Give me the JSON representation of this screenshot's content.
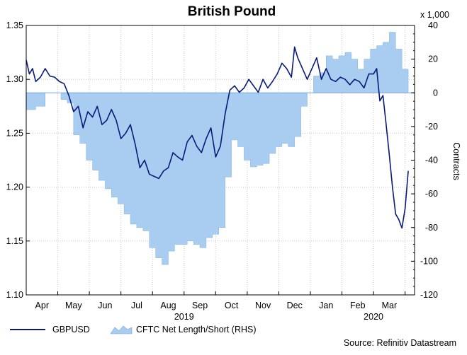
{
  "chart_data": {
    "type": "line",
    "title": "British Pound",
    "source": "Source: Refinitiv Datastream",
    "colors": {
      "price": "#0a1a7a",
      "positions": "#a8cdf0",
      "positions_edge": "#6fa6dc",
      "grid": "#c8c8c8"
    },
    "left_axis": {
      "ylim": [
        1.1,
        1.35
      ],
      "ticks": [
        1.1,
        1.15,
        1.2,
        1.25,
        1.3,
        1.35
      ],
      "tick_labels": [
        "1.10",
        "1.15",
        "1.20",
        "1.25",
        "1.30",
        "1.35"
      ]
    },
    "right_axis": {
      "label": "Contracts",
      "unit_label": "x 1,000",
      "ylim": [
        -120,
        40
      ],
      "ticks": [
        -120,
        -100,
        -80,
        -60,
        -40,
        -20,
        0,
        20,
        40
      ],
      "tick_labels": [
        "-120",
        "-100",
        "-80",
        "-60",
        "-40",
        "-20",
        "0",
        "20",
        "40"
      ]
    },
    "x_axis": {
      "xlim": [
        0,
        12.3
      ],
      "month_ticks": [
        0.5,
        1.5,
        2.5,
        3.5,
        4.5,
        5.5,
        6.5,
        7.5,
        8.5,
        9.5,
        10.5,
        11.5
      ],
      "month_labels": [
        "Apr",
        "May",
        "Jun",
        "Jul",
        "Aug",
        "Sep",
        "Oct",
        "Nov",
        "Dec",
        "Jan",
        "Feb",
        "Mar"
      ],
      "year_labels": [
        {
          "label": "2019",
          "at": 5.0
        },
        {
          "label": "2020",
          "at": 11.0
        }
      ]
    },
    "series": [
      {
        "name": "GBPUSD",
        "axis": "left",
        "kind": "line",
        "x": [
          0.0,
          0.1,
          0.2,
          0.3,
          0.45,
          0.6,
          0.75,
          0.9,
          1.05,
          1.2,
          1.35,
          1.5,
          1.65,
          1.8,
          1.95,
          2.1,
          2.25,
          2.4,
          2.55,
          2.7,
          2.85,
          3.0,
          3.15,
          3.3,
          3.45,
          3.6,
          3.75,
          3.9,
          4.05,
          4.2,
          4.35,
          4.5,
          4.65,
          4.8,
          4.95,
          5.1,
          5.25,
          5.4,
          5.55,
          5.7,
          5.85,
          6.0,
          6.15,
          6.3,
          6.45,
          6.6,
          6.75,
          6.9,
          7.05,
          7.2,
          7.35,
          7.5,
          7.65,
          7.8,
          7.95,
          8.1,
          8.25,
          8.4,
          8.5,
          8.6,
          8.75,
          8.9,
          9.05,
          9.2,
          9.35,
          9.5,
          9.65,
          9.8,
          9.95,
          10.1,
          10.25,
          10.4,
          10.55,
          10.7,
          10.85,
          11.0,
          11.1,
          11.2,
          11.3,
          11.4,
          11.5,
          11.6,
          11.7,
          11.8,
          11.9,
          12.0,
          12.1
        ],
        "values": [
          1.318,
          1.305,
          1.31,
          1.298,
          1.302,
          1.31,
          1.303,
          1.302,
          1.298,
          1.296,
          1.285,
          1.27,
          1.275,
          1.255,
          1.27,
          1.265,
          1.275,
          1.258,
          1.262,
          1.272,
          1.262,
          1.245,
          1.25,
          1.258,
          1.24,
          1.218,
          1.225,
          1.212,
          1.21,
          1.208,
          1.215,
          1.218,
          1.232,
          1.228,
          1.225,
          1.242,
          1.248,
          1.238,
          1.232,
          1.245,
          1.255,
          1.228,
          1.238,
          1.268,
          1.29,
          1.294,
          1.288,
          1.292,
          1.3,
          1.294,
          1.288,
          1.3,
          1.292,
          1.298,
          1.305,
          1.315,
          1.31,
          1.302,
          1.33,
          1.32,
          1.31,
          1.3,
          1.31,
          1.32,
          1.3,
          1.31,
          1.3,
          1.298,
          1.302,
          1.3,
          1.295,
          1.3,
          1.298,
          1.292,
          1.305,
          1.305,
          1.31,
          1.28,
          1.285,
          1.258,
          1.23,
          1.2,
          1.175,
          1.17,
          1.162,
          1.18,
          1.215
        ]
      },
      {
        "name": "CFTC Net Length/Short (RHS)",
        "axis": "right",
        "kind": "step-area",
        "x": [
          0.0,
          0.3,
          0.6,
          0.9,
          1.1,
          1.3,
          1.5,
          1.7,
          1.9,
          2.1,
          2.3,
          2.5,
          2.7,
          2.9,
          3.1,
          3.3,
          3.5,
          3.7,
          3.9,
          4.1,
          4.3,
          4.5,
          4.7,
          4.9,
          5.1,
          5.3,
          5.5,
          5.7,
          5.9,
          6.1,
          6.3,
          6.5,
          6.7,
          6.9,
          7.1,
          7.3,
          7.5,
          7.7,
          7.9,
          8.1,
          8.3,
          8.5,
          8.7,
          8.9,
          9.1,
          9.3,
          9.5,
          9.7,
          9.9,
          10.1,
          10.3,
          10.5,
          10.7,
          10.9,
          11.1,
          11.3,
          11.5,
          11.7,
          11.9,
          12.1
        ],
        "values": [
          -10,
          -8,
          0,
          0,
          -4,
          -6,
          -25,
          -30,
          -40,
          -46,
          -52,
          -57,
          -62,
          -66,
          -72,
          -78,
          -80,
          -82,
          -92,
          -98,
          -102,
          -94,
          -90,
          -90,
          -88,
          -90,
          -92,
          -86,
          -84,
          -80,
          -50,
          -28,
          -32,
          -40,
          -44,
          -43,
          -42,
          -36,
          -32,
          -30,
          -32,
          -26,
          -8,
          0,
          10,
          12,
          22,
          20,
          22,
          24,
          20,
          14,
          20,
          26,
          28,
          30,
          36,
          26,
          14,
          11
        ]
      }
    ]
  }
}
